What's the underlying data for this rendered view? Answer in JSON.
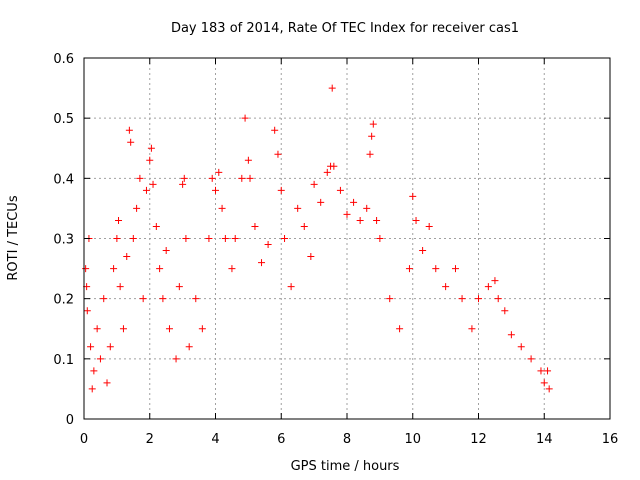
{
  "chart_data": {
    "type": "scatter",
    "title": "Day 183 of 2014, Rate Of TEC Index for receiver cas1",
    "xlabel": "GPS time / hours",
    "ylabel": "ROTI / TECUs",
    "xlim": [
      0,
      16
    ],
    "ylim": [
      0,
      0.6
    ],
    "xticks": [
      "0",
      "2",
      "4",
      "6",
      "8",
      "10",
      "12",
      "14",
      "16"
    ],
    "yticks": [
      "0",
      "0.1",
      "0.2",
      "0.3",
      "0.4",
      "0.5",
      "0.6"
    ],
    "grid": true,
    "marker": "+",
    "color": "#ff0000",
    "series": [
      {
        "name": "cas1",
        "points": [
          [
            0.05,
            0.25
          ],
          [
            0.08,
            0.22
          ],
          [
            0.1,
            0.18
          ],
          [
            0.15,
            0.3
          ],
          [
            0.2,
            0.12
          ],
          [
            0.25,
            0.05
          ],
          [
            0.3,
            0.08
          ],
          [
            0.4,
            0.15
          ],
          [
            0.5,
            0.1
          ],
          [
            0.6,
            0.2
          ],
          [
            0.7,
            0.06
          ],
          [
            0.8,
            0.12
          ],
          [
            0.9,
            0.25
          ],
          [
            1.0,
            0.3
          ],
          [
            1.05,
            0.33
          ],
          [
            1.1,
            0.22
          ],
          [
            1.2,
            0.15
          ],
          [
            1.3,
            0.27
          ],
          [
            1.38,
            0.48
          ],
          [
            1.42,
            0.46
          ],
          [
            1.5,
            0.3
          ],
          [
            1.6,
            0.35
          ],
          [
            1.7,
            0.4
          ],
          [
            1.8,
            0.2
          ],
          [
            1.9,
            0.38
          ],
          [
            2.0,
            0.43
          ],
          [
            2.05,
            0.45
          ],
          [
            2.1,
            0.39
          ],
          [
            2.2,
            0.32
          ],
          [
            2.3,
            0.25
          ],
          [
            2.4,
            0.2
          ],
          [
            2.5,
            0.28
          ],
          [
            2.6,
            0.15
          ],
          [
            2.8,
            0.1
          ],
          [
            2.9,
            0.22
          ],
          [
            3.0,
            0.39
          ],
          [
            3.05,
            0.4
          ],
          [
            3.1,
            0.3
          ],
          [
            3.2,
            0.12
          ],
          [
            3.4,
            0.2
          ],
          [
            3.6,
            0.15
          ],
          [
            3.8,
            0.3
          ],
          [
            3.9,
            0.4
          ],
          [
            4.0,
            0.38
          ],
          [
            4.1,
            0.41
          ],
          [
            4.2,
            0.35
          ],
          [
            4.3,
            0.3
          ],
          [
            4.5,
            0.25
          ],
          [
            4.6,
            0.3
          ],
          [
            4.8,
            0.4
          ],
          [
            4.9,
            0.5
          ],
          [
            5.0,
            0.43
          ],
          [
            5.05,
            0.4
          ],
          [
            5.2,
            0.32
          ],
          [
            5.4,
            0.26
          ],
          [
            5.6,
            0.29
          ],
          [
            5.8,
            0.48
          ],
          [
            5.9,
            0.44
          ],
          [
            6.0,
            0.38
          ],
          [
            6.1,
            0.3
          ],
          [
            6.3,
            0.22
          ],
          [
            6.5,
            0.35
          ],
          [
            6.7,
            0.32
          ],
          [
            6.9,
            0.27
          ],
          [
            7.0,
            0.39
          ],
          [
            7.2,
            0.36
          ],
          [
            7.4,
            0.41
          ],
          [
            7.5,
            0.42
          ],
          [
            7.55,
            0.55
          ],
          [
            7.6,
            0.42
          ],
          [
            7.8,
            0.38
          ],
          [
            8.0,
            0.34
          ],
          [
            8.2,
            0.36
          ],
          [
            8.4,
            0.33
          ],
          [
            8.6,
            0.35
          ],
          [
            8.7,
            0.44
          ],
          [
            8.75,
            0.47
          ],
          [
            8.8,
            0.49
          ],
          [
            8.9,
            0.33
          ],
          [
            9.0,
            0.3
          ],
          [
            9.3,
            0.2
          ],
          [
            9.6,
            0.15
          ],
          [
            9.9,
            0.25
          ],
          [
            10.0,
            0.37
          ],
          [
            10.1,
            0.33
          ],
          [
            10.3,
            0.28
          ],
          [
            10.5,
            0.32
          ],
          [
            10.7,
            0.25
          ],
          [
            11.0,
            0.22
          ],
          [
            11.3,
            0.25
          ],
          [
            11.5,
            0.2
          ],
          [
            11.8,
            0.15
          ],
          [
            12.0,
            0.2
          ],
          [
            12.3,
            0.22
          ],
          [
            12.5,
            0.23
          ],
          [
            12.6,
            0.2
          ],
          [
            12.8,
            0.18
          ],
          [
            13.0,
            0.14
          ],
          [
            13.3,
            0.12
          ],
          [
            13.6,
            0.1
          ],
          [
            13.9,
            0.08
          ],
          [
            14.0,
            0.06
          ],
          [
            14.1,
            0.08
          ],
          [
            14.15,
            0.05
          ]
        ]
      }
    ]
  }
}
